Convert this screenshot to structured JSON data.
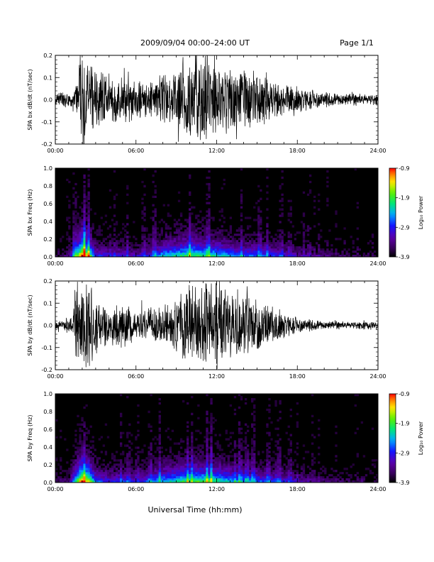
{
  "header": {
    "title": "2009/09/04  00:00–24:00 UT",
    "page": "Page 1/1"
  },
  "footer": {
    "xlabel": "Universal Time (hh:mm)"
  },
  "chart_data": [
    {
      "type": "line",
      "name": "bx-timeseries",
      "ylabel": "SPA bx dB/dt (nT/sec)",
      "xlim": [
        0,
        24
      ],
      "ylim": [
        -0.2,
        0.2
      ],
      "x_ticks": [
        "00:00",
        "06:00",
        "12:00",
        "18:00",
        "24:00"
      ],
      "y_ticks": [
        "-0.2",
        "-0.1",
        "0.0",
        "0.1",
        "0.2"
      ],
      "series": [
        {
          "x": [
            0,
            1,
            1.5,
            1.7,
            2.5,
            3,
            4,
            5,
            6,
            7,
            8,
            9,
            9.5,
            10,
            11,
            12,
            13,
            14,
            15,
            16,
            17,
            18,
            19,
            20,
            21,
            22,
            23,
            24
          ],
          "envelope": [
            0.03,
            0.04,
            0.06,
            0.22,
            0.22,
            0.18,
            0.12,
            0.14,
            0.1,
            0.09,
            0.12,
            0.14,
            0.22,
            0.22,
            0.22,
            0.18,
            0.16,
            0.15,
            0.13,
            0.11,
            0.08,
            0.06,
            0.05,
            0.04,
            0.03,
            0.03,
            0.03,
            0.03
          ]
        }
      ]
    },
    {
      "type": "heatmap",
      "name": "bx-spectrogram",
      "ylabel": "SPA bx Freq (Hz)",
      "xlim": [
        0,
        24
      ],
      "ylim": [
        0.0,
        1.0
      ],
      "x_ticks": [
        "00:00",
        "06:00",
        "12:00",
        "18:00",
        "24:00"
      ],
      "y_ticks": [
        "0.0",
        "0.2",
        "0.4",
        "0.6",
        "0.8",
        "1.0"
      ],
      "colorbar": {
        "label": "Log₁₀ Power",
        "range": [
          -3.9,
          -0.9
        ],
        "ticks": [
          "-0.9",
          "-1.9",
          "-2.9",
          "-3.9"
        ],
        "colormap": "rainbow"
      },
      "activity": {
        "x": [
          0,
          1,
          1.5,
          2,
          2.5,
          3,
          4,
          5,
          6,
          7,
          8,
          9,
          10,
          11,
          12,
          13,
          14,
          15,
          16,
          17,
          18,
          19,
          20,
          21,
          22,
          23,
          24
        ],
        "level": [
          0.1,
          0.15,
          0.6,
          1.0,
          0.8,
          0.4,
          0.3,
          0.35,
          0.25,
          0.35,
          0.55,
          0.6,
          0.7,
          0.65,
          0.6,
          0.5,
          0.45,
          0.45,
          0.4,
          0.3,
          0.25,
          0.2,
          0.15,
          0.12,
          0.1,
          0.1,
          0.08
        ]
      }
    },
    {
      "type": "line",
      "name": "by-timeseries",
      "ylabel": "SPA by dB/dt (nT/sec)",
      "xlim": [
        0,
        24
      ],
      "ylim": [
        -0.2,
        0.2
      ],
      "x_ticks": [
        "00:00",
        "06:00",
        "12:00",
        "18:00",
        "24:00"
      ],
      "y_ticks": [
        "-0.2",
        "-0.1",
        "0.0",
        "0.1",
        "0.2"
      ],
      "series": [
        {
          "x": [
            0,
            1,
            1.3,
            1.5,
            2.5,
            3,
            4,
            5,
            6,
            7,
            8,
            9,
            9.5,
            10,
            11,
            12,
            13,
            14,
            15,
            16,
            17,
            18,
            19,
            20,
            21,
            22,
            23,
            24
          ],
          "envelope": [
            0.02,
            0.03,
            0.05,
            0.22,
            0.22,
            0.15,
            0.09,
            0.12,
            0.08,
            0.08,
            0.1,
            0.12,
            0.17,
            0.22,
            0.22,
            0.22,
            0.18,
            0.16,
            0.14,
            0.1,
            0.06,
            0.04,
            0.03,
            0.02,
            0.02,
            0.02,
            0.02,
            0.02
          ]
        }
      ]
    },
    {
      "type": "heatmap",
      "name": "by-spectrogram",
      "ylabel": "SPA by Freq (Hz)",
      "xlim": [
        0,
        24
      ],
      "ylim": [
        0.0,
        1.0
      ],
      "x_ticks": [
        "00:00",
        "06:00",
        "12:00",
        "18:00",
        "24:00"
      ],
      "y_ticks": [
        "0.0",
        "0.2",
        "0.4",
        "0.6",
        "0.8",
        "1.0"
      ],
      "colorbar": {
        "label": "Log₁₀ Power",
        "range": [
          -3.9,
          -0.9
        ],
        "ticks": [
          "-0.9",
          "-1.9",
          "-2.9",
          "-3.9"
        ],
        "colormap": "rainbow"
      },
      "activity": {
        "x": [
          0,
          1,
          1.5,
          2,
          2.5,
          3,
          4,
          5,
          6,
          7,
          8,
          9,
          10,
          11,
          12,
          13,
          14,
          15,
          16,
          17,
          18,
          19,
          20,
          21,
          22,
          23,
          24
        ],
        "level": [
          0.1,
          0.15,
          0.65,
          1.0,
          0.85,
          0.45,
          0.35,
          0.4,
          0.3,
          0.45,
          0.55,
          0.6,
          0.7,
          0.7,
          0.65,
          0.55,
          0.5,
          0.45,
          0.4,
          0.35,
          0.25,
          0.2,
          0.15,
          0.12,
          0.1,
          0.1,
          0.08
        ]
      }
    }
  ]
}
